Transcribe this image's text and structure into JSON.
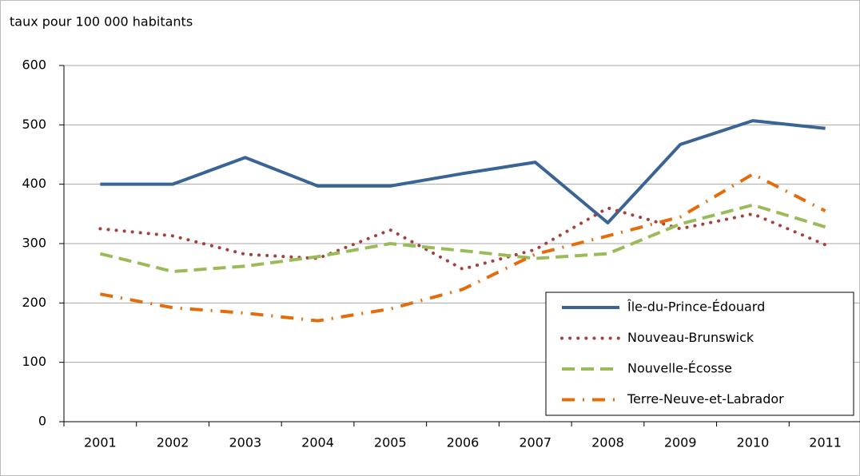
{
  "chart_data": {
    "type": "line",
    "y_axis_label": "taux pour 100 000 habitants",
    "categories": [
      "2001",
      "2002",
      "2003",
      "2004",
      "2005",
      "2006",
      "2007",
      "2008",
      "2009",
      "2010",
      "2011"
    ],
    "series": [
      {
        "name": "Île-du-Prince-Édouard",
        "color": "#3b6496",
        "linestyle": "solid",
        "values": [
          400,
          400,
          445,
          397,
          397,
          418,
          437,
          335,
          467,
          507,
          494
        ]
      },
      {
        "name": "Nouveau-Brunswick",
        "color": "#a5403d",
        "linestyle": "dotted",
        "values": [
          325,
          313,
          282,
          275,
          323,
          257,
          290,
          360,
          325,
          350,
          298
        ]
      },
      {
        "name": "Nouvelle-Écosse",
        "color": "#9bbb59",
        "linestyle": "dashed",
        "values": [
          283,
          253,
          262,
          278,
          300,
          288,
          275,
          283,
          333,
          365,
          328
        ]
      },
      {
        "name": "Terre-Neuve-et-Labrador",
        "color": "#e46c0a",
        "linestyle": "dashdot",
        "values": [
          215,
          192,
          183,
          170,
          190,
          223,
          282,
          313,
          345,
          417,
          355
        ]
      }
    ],
    "ylim": [
      0,
      600
    ],
    "yticks": [
      0,
      100,
      200,
      300,
      400,
      500,
      600
    ],
    "grid": true,
    "legend": "lower right"
  }
}
